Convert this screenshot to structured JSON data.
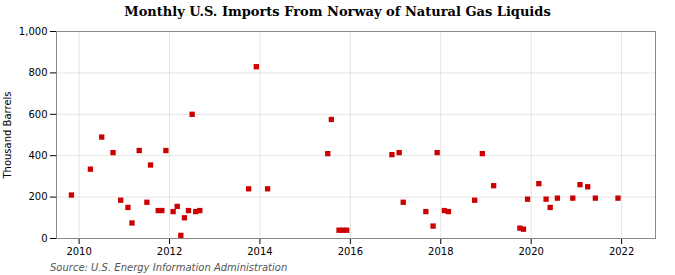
{
  "chart_data": {
    "type": "scatter",
    "title": "Monthly U.S. Imports From Norway of Natural Gas Liquids",
    "ylabel": "Thousand Barrels",
    "source": "Source: U.S. Energy Information Administration",
    "color": "#cc0000",
    "marker": "square",
    "grid": true,
    "xlim": [
      2009.5,
      2022.75
    ],
    "xticks": [
      2010,
      2012,
      2014,
      2016,
      2018,
      2020,
      2022
    ],
    "ylim": [
      0,
      1000
    ],
    "yticks": [
      0,
      200,
      400,
      600,
      800,
      {
        "value": 1000,
        "label": "1,000"
      }
    ],
    "x": [
      2009.83,
      2010.25,
      2010.5,
      2010.75,
      2010.92,
      2011.08,
      2011.17,
      2011.33,
      2011.5,
      2011.58,
      2011.75,
      2011.83,
      2011.92,
      2012.08,
      2012.17,
      2012.25,
      2012.33,
      2012.42,
      2012.5,
      2012.58,
      2012.67,
      2013.75,
      2013.92,
      2014.17,
      2015.5,
      2015.58,
      2015.75,
      2015.83,
      2015.92,
      2016.92,
      2017.08,
      2017.17,
      2017.67,
      2017.83,
      2017.92,
      2018.08,
      2018.17,
      2018.75,
      2018.92,
      2019.17,
      2019.75,
      2019.83,
      2019.92,
      2020.17,
      2020.33,
      2020.42,
      2020.58,
      2020.92,
      2021.08,
      2021.25,
      2021.42,
      2021.92
    ],
    "values": [
      210,
      335,
      490,
      415,
      185,
      150,
      75,
      425,
      175,
      355,
      135,
      135,
      425,
      130,
      155,
      15,
      100,
      135,
      600,
      130,
      135,
      240,
      830,
      240,
      410,
      575,
      40,
      40,
      40,
      405,
      415,
      175,
      130,
      60,
      415,
      135,
      130,
      185,
      410,
      255,
      50,
      45,
      190,
      265,
      190,
      150,
      195,
      195,
      260,
      250,
      195,
      195
    ]
  }
}
